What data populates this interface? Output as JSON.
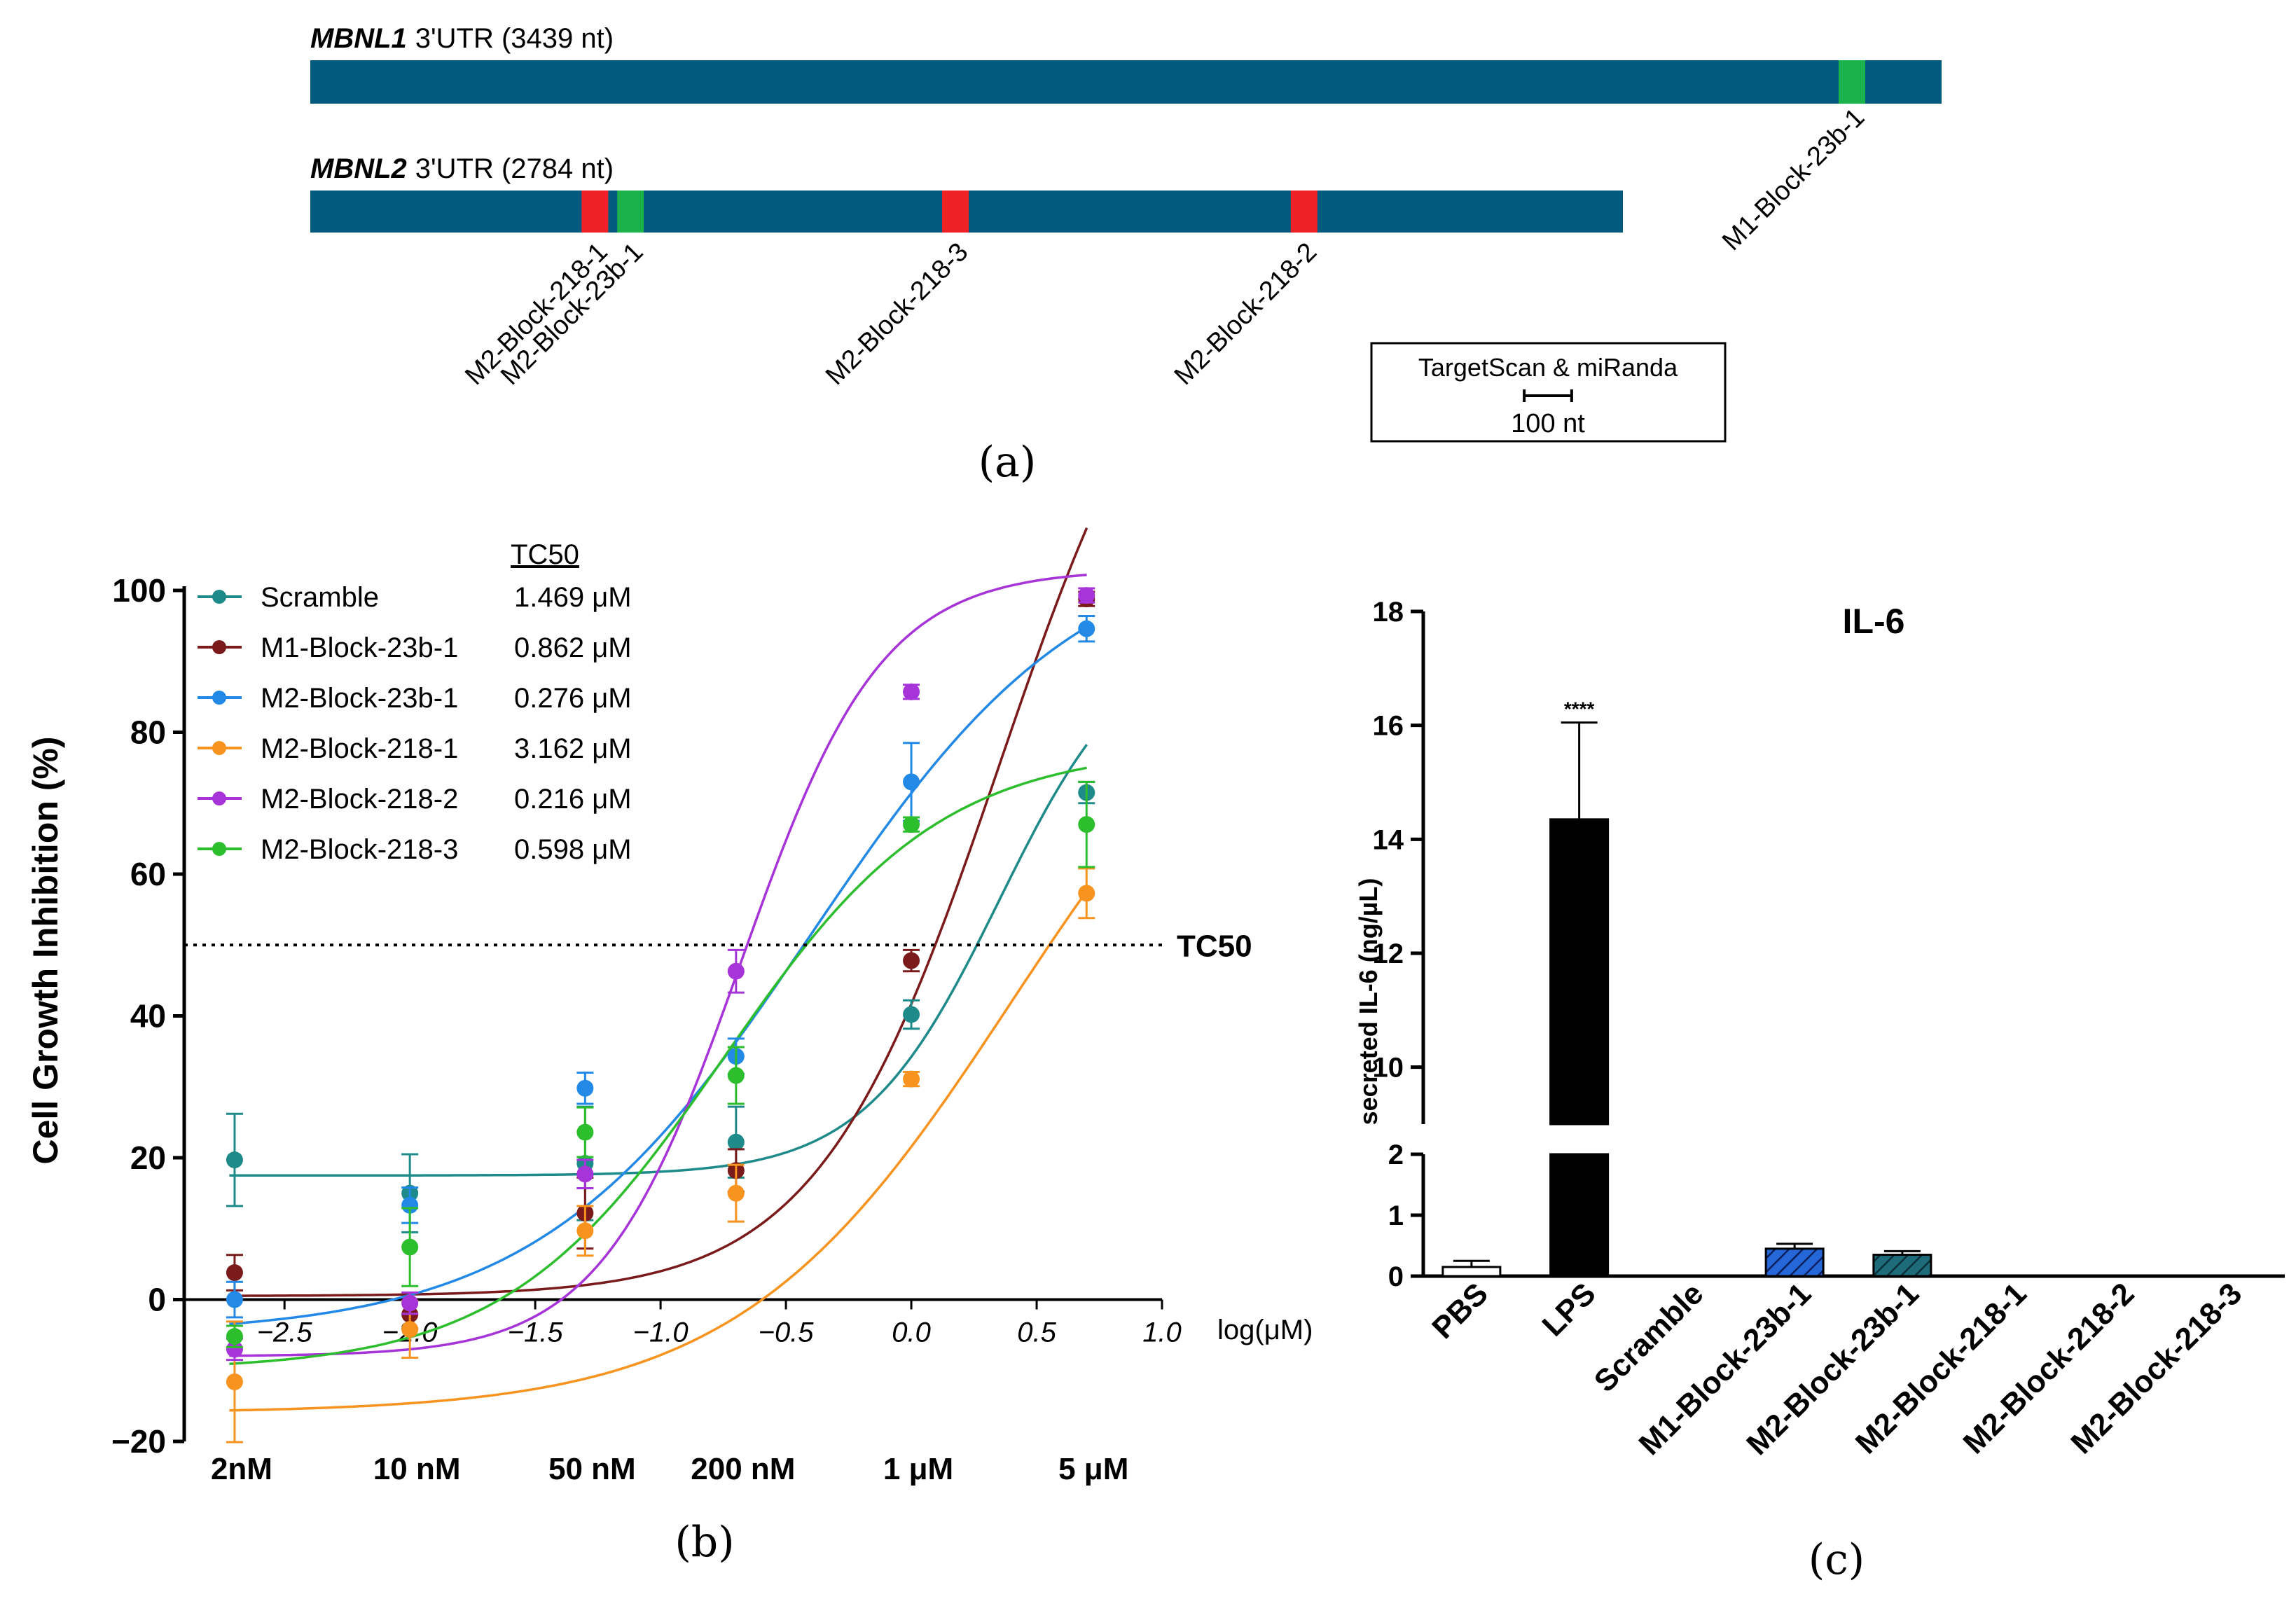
{
  "panel_a": {
    "panel_label": "(a)",
    "colors": {
      "bar": "#025B7F",
      "site_218": "#EE2226",
      "site_23b": "#1BB24B"
    },
    "tracks": [
      {
        "gene": "MBNL1",
        "utr_label": "3'UTR (3439  nt)",
        "length_nt": 3439,
        "sites": [
          {
            "name": "M1-Block-23b-1",
            "family": "23b",
            "position_nt": 3250
          }
        ]
      },
      {
        "gene": "MBNL2",
        "utr_label": "3'UTR (2784  nt)",
        "length_nt": 2784,
        "sites": [
          {
            "name": "M2-Block-218-1",
            "family": "218",
            "position_nt": 600
          },
          {
            "name": "M2-Block-23b-1",
            "family": "23b",
            "position_nt": 675
          },
          {
            "name": "M2-Block-218-3",
            "family": "218",
            "position_nt": 1360
          },
          {
            "name": "M2-Block-218-2",
            "family": "218",
            "position_nt": 2095
          }
        ]
      }
    ],
    "legend": {
      "title": "TargetScan & miRanda",
      "scale_label": "100 nt",
      "scale_nt": 100
    }
  },
  "chart_data": [
    {
      "type": "scatter",
      "panel_label": "(b)",
      "title": "",
      "xlabel": "log(μM)",
      "ylabel": "Cell Growth Inhibition (%)",
      "xlim": [
        -2.9,
        1.0
      ],
      "ylim": [
        -20,
        100
      ],
      "x_ticks": [
        -2.5,
        -2.0,
        -1.5,
        -1.0,
        -0.5,
        0.0,
        0.5,
        1.0
      ],
      "x_tick_labels": [
        "−2.5",
        "−2.0",
        "−1.5",
        "−1.0",
        "−0.5",
        "0.0",
        "0.5",
        "1.0"
      ],
      "y_ticks": [
        -20,
        0,
        20,
        40,
        60,
        80,
        100
      ],
      "y_tick_labels": [
        "−20",
        "0",
        "20",
        "40",
        "60",
        "80",
        "100"
      ],
      "x": [
        -2.699,
        -2.0,
        -1.301,
        -0.699,
        0.0,
        0.699
      ],
      "concentration_labels": [
        "2nM",
        "10 nM",
        "50 nM",
        "200 nM",
        "1 μM",
        "5 μM"
      ],
      "legend_header": "TC50",
      "reference_line": {
        "y": 50,
        "label": "TC50"
      },
      "series": [
        {
          "name": "Scramble",
          "tc50": "1.469 μM",
          "color": "#1F8A8A",
          "values": [
            19.7,
            15.0,
            19.2,
            22.2,
            40.2,
            71.5
          ],
          "errors": [
            6.5,
            5.5,
            8.0,
            5.0,
            2.0,
            1.5
          ],
          "fit": {
            "bottom": 17.5,
            "top": 95,
            "logec50": 0.35,
            "hill": 1.6
          }
        },
        {
          "name": "M1-Block-23b-1",
          "tc50": "0.862 μM",
          "color": "#7A1A1A",
          "values": [
            3.8,
            -2.1,
            12.2,
            18.2,
            47.8,
            98.8
          ],
          "errors": [
            2.5,
            2.0,
            5.0,
            3.0,
            1.5,
            1.0
          ],
          "fit": {
            "bottom": 0.5,
            "top": 150,
            "logec50": 0.35,
            "hill": 1.2
          }
        },
        {
          "name": "M2-Block-23b-1",
          "tc50": "0.276 μM",
          "color": "#2389E6",
          "values": [
            0.0,
            13.3,
            29.8,
            34.3,
            73.0,
            94.6
          ],
          "errors": [
            2.5,
            2.5,
            2.2,
            2.5,
            5.5,
            1.8
          ],
          "fit": {
            "bottom": -5,
            "top": 108,
            "logec50": -0.4,
            "hill": 0.8
          }
        },
        {
          "name": "M2-Block-218-1",
          "tc50": "3.162 μM",
          "color": "#F7931E",
          "values": [
            -11.6,
            -4.2,
            9.7,
            15.0,
            31.1,
            57.3
          ],
          "errors": [
            8.5,
            4.0,
            3.5,
            4.0,
            1.0,
            3.5
          ],
          "fit": {
            "bottom": -16,
            "top": 100,
            "logec50": 0.4,
            "hill": 0.8
          }
        },
        {
          "name": "M2-Block-218-2",
          "tc50": "0.216 μM",
          "color": "#A734D8",
          "values": [
            -7.0,
            -0.5,
            17.7,
            46.3,
            85.7,
            99.3
          ],
          "errors": [
            1.5,
            1.5,
            2.0,
            3.0,
            1.0,
            1.0
          ],
          "fit": {
            "bottom": -8,
            "top": 103,
            "logec50": -0.68,
            "hill": 1.55
          }
        },
        {
          "name": "M2-Block-218-3",
          "tc50": "0.598 μM",
          "color": "#2DBE2D",
          "values": [
            -5.2,
            7.4,
            23.6,
            31.6,
            67.0,
            67.0
          ],
          "errors": [
            1.5,
            5.5,
            3.5,
            4.0,
            1.0,
            6.0
          ],
          "fit": {
            "bottom": -10,
            "top": 78,
            "logec50": -0.75,
            "hill": 1.0
          }
        }
      ]
    },
    {
      "type": "bar",
      "panel_label": "(c)",
      "title": "IL-6",
      "xlabel": "",
      "ylabel": "secreted IL-6 (ng/µL)",
      "axis_break": {
        "lower": [
          0,
          2
        ],
        "upper": [
          9,
          18
        ]
      },
      "y_ticks_lower": [
        0,
        1,
        2
      ],
      "y_ticks_upper": [
        10,
        12,
        14,
        16,
        18
      ],
      "categories": [
        "PBS",
        "LPS",
        "Scramble",
        "M1-Block-23b-1",
        "M2-Block-23b-1",
        "M2-Block-218-1",
        "M2-Block-218-2",
        "M2-Block-218-3"
      ],
      "values": [
        0.15,
        14.35,
        0,
        0.45,
        0.35,
        0,
        0,
        0
      ],
      "errors": [
        0.1,
        1.7,
        0,
        0.08,
        0.06,
        0,
        0,
        0
      ],
      "significance": [
        "",
        "****",
        "",
        "",
        "",
        "",
        "",
        ""
      ],
      "styles": [
        "hollow",
        "solid",
        "none",
        "hatch",
        "hatch",
        "none",
        "none",
        "none"
      ],
      "colors": [
        "#ffffff",
        "#000000",
        "#000000",
        "#2566D8",
        "#1E6B7A",
        "#000000",
        "#000000",
        "#000000"
      ]
    }
  ]
}
